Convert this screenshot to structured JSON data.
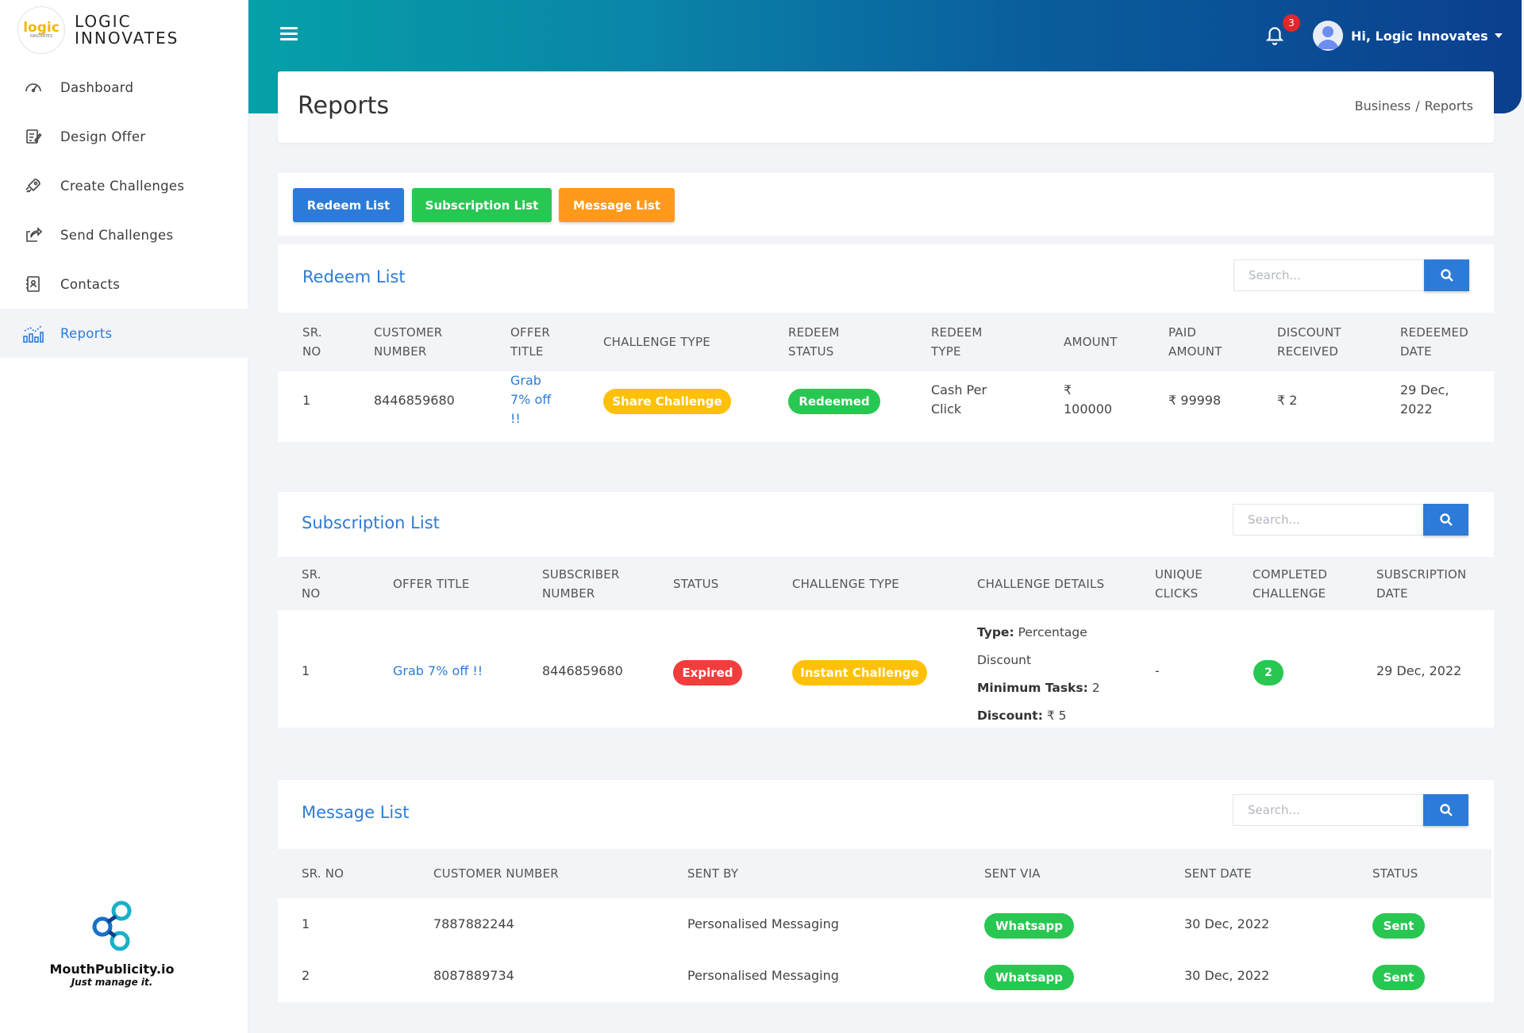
{
  "brand": {
    "logo_text": "logic",
    "logo_subtext": "INNOVATES",
    "line1": "LOGIC",
    "line2": "INNOVATES"
  },
  "sidebar": {
    "items": [
      {
        "label": "Dashboard",
        "icon": "speedometer-icon"
      },
      {
        "label": "Design Offer",
        "icon": "edit-document-icon"
      },
      {
        "label": "Create Challenges",
        "icon": "rocket-icon"
      },
      {
        "label": "Send Challenges",
        "icon": "share-icon"
      },
      {
        "label": "Contacts",
        "icon": "contact-book-icon"
      },
      {
        "label": "Reports",
        "icon": "bar-chart-icon"
      }
    ],
    "active": "Reports",
    "footer": {
      "name": "MouthPublicity.io",
      "tagline": "Just manage it."
    }
  },
  "header": {
    "notification_count": "3",
    "user_greeting": "Hi, Logic Innovates"
  },
  "page": {
    "title": "Reports",
    "breadcrumb": [
      "Business",
      "Reports"
    ],
    "breadcrumb_sep": "/"
  },
  "tabs": [
    {
      "label": "Redeem List",
      "color": "#2d7bd8"
    },
    {
      "label": "Subscription List",
      "color": "#28c752"
    },
    {
      "label": "Message List",
      "color": "#fd9a1c"
    }
  ],
  "redeem": {
    "title": "Redeem List",
    "search_placeholder": "Search...",
    "columns": [
      [
        "SR.",
        "NO"
      ],
      [
        "CUSTOMER",
        "NUMBER"
      ],
      [
        "OFFER",
        "TITLE"
      ],
      [
        "CHALLENGE TYPE"
      ],
      [
        "REDEEM",
        "STATUS"
      ],
      [
        "REDEEM",
        "TYPE"
      ],
      [
        "AMOUNT"
      ],
      [
        "PAID",
        "AMOUNT"
      ],
      [
        "DISCOUNT",
        "RECEIVED"
      ],
      [
        "REDEEMED",
        "DATE"
      ]
    ],
    "rows": [
      {
        "sr": "1",
        "customer_number": "8446859680",
        "offer_title": [
          "Grab",
          "7% off",
          "!!"
        ],
        "challenge_type": "Share Challenge",
        "redeem_status": "Redeemed",
        "redeem_type": [
          "Cash Per",
          "Click"
        ],
        "amount": [
          "₹",
          "100000"
        ],
        "paid_amount": "₹ 99998",
        "discount_received": "₹ 2",
        "redeemed_date": [
          "29 Dec,",
          "2022"
        ]
      }
    ]
  },
  "subscription": {
    "title": "Subscription List",
    "search_placeholder": "Search...",
    "columns": [
      [
        "SR.",
        "NO"
      ],
      [
        "OFFER TITLE"
      ],
      [
        "SUBSCRIBER",
        "NUMBER"
      ],
      [
        "STATUS"
      ],
      [
        "CHALLENGE TYPE"
      ],
      [
        "CHALLENGE DETAILS"
      ],
      [
        "UNIQUE",
        "CLICKS"
      ],
      [
        "COMPLETED",
        "CHALLENGE"
      ],
      [
        "SUBSCRIPTION",
        "DATE"
      ]
    ],
    "rows": [
      {
        "sr": "1",
        "offer_title": "Grab 7% off !!",
        "subscriber_number": "8446859680",
        "status": "Expired",
        "challenge_type": "Instant Challenge",
        "details": {
          "type_label": "Type:",
          "type_value": "Percentage",
          "type_value2": "Discount",
          "tasks_label": "Minimum Tasks:",
          "tasks_value": "2",
          "discount_label": "Discount:",
          "discount_value": "₹ 5"
        },
        "unique_clicks": "-",
        "completed_challenge": "2",
        "subscription_date": "29 Dec, 2022"
      }
    ]
  },
  "message": {
    "title": "Message List",
    "search_placeholder": "Search...",
    "columns": [
      "SR. NO",
      "CUSTOMER NUMBER",
      "SENT BY",
      "SENT VIA",
      "SENT DATE",
      "STATUS"
    ],
    "rows": [
      {
        "sr": "1",
        "customer_number": "7887882244",
        "sent_by": "Personalised Messaging",
        "sent_via": "Whatsapp",
        "sent_date": "30 Dec, 2022",
        "status": "Sent"
      },
      {
        "sr": "2",
        "customer_number": "8087889734",
        "sent_by": "Personalised Messaging",
        "sent_via": "Whatsapp",
        "sent_date": "30 Dec, 2022",
        "status": "Sent"
      }
    ]
  }
}
